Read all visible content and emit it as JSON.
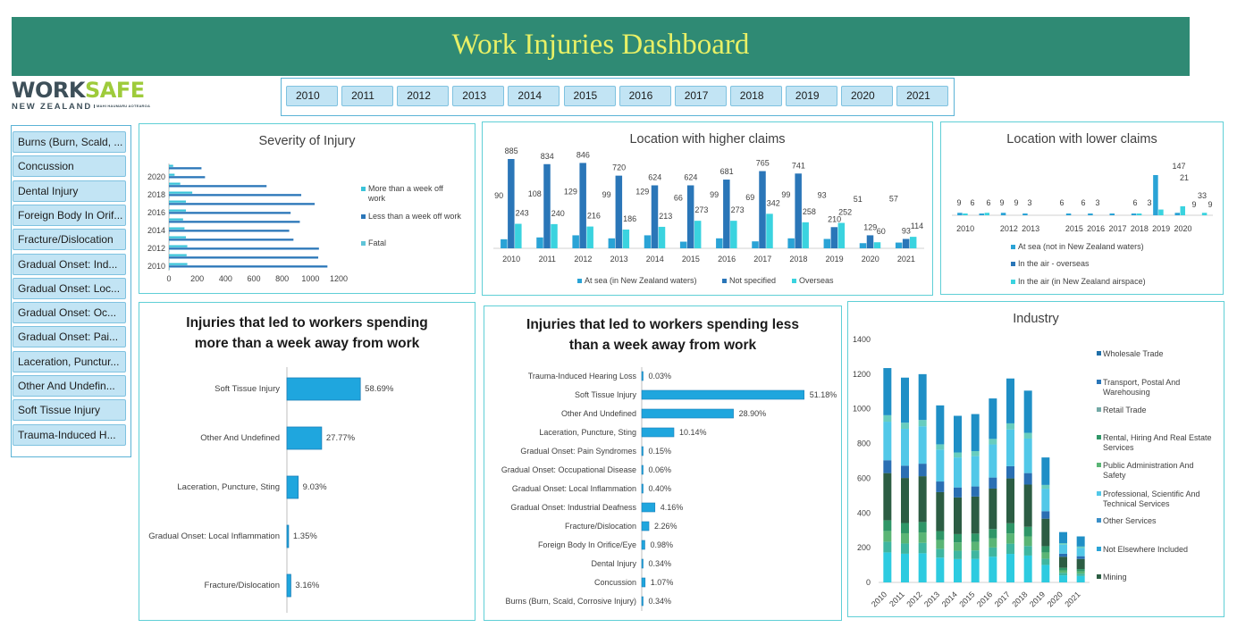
{
  "header": {
    "title": "Work Injuries Dashboard"
  },
  "logo": {
    "word1": "WORK",
    "word2": "SAFE",
    "country": "NEW ZEALAND",
    "maori": "MAHI HAUMARU AOTEAROA"
  },
  "year_slicer": [
    "2010",
    "2011",
    "2012",
    "2013",
    "2014",
    "2015",
    "2016",
    "2017",
    "2018",
    "2019",
    "2020",
    "2021"
  ],
  "injury_slicer": [
    "Burns (Burn, Scald, ...",
    "Concussion",
    "Dental Injury",
    "Foreign Body In Orif...",
    "Fracture/Dislocation",
    "Gradual Onset: Ind...",
    "Gradual Onset: Loc...",
    "Gradual Onset: Oc...",
    "Gradual Onset: Pai...",
    "Laceration, Punctur...",
    "Other And Undefin...",
    "Soft Tissue Injury",
    "Trauma-Induced H..."
  ],
  "colors": {
    "dark_blue": "#2a76b8",
    "cyan": "#3ac3d9",
    "mid_blue": "#1f9fd6",
    "teal": "#34bfc7",
    "header_green": "#2f8a74",
    "title_yellow": "#e8f066"
  },
  "chart_data": [
    {
      "id": "severity",
      "type": "bar",
      "orientation": "horizontal",
      "title": "Severity of Injury",
      "categories": [
        "2010",
        "2011",
        "2012",
        "2013",
        "2014",
        "2015",
        "2016",
        "2017",
        "2018",
        "2019",
        "2020",
        "2021"
      ],
      "y_tick_labels": [
        "2010",
        "2012",
        "2014",
        "2016",
        "2018",
        "2020"
      ],
      "xlim": [
        0,
        1200
      ],
      "x_ticks": [
        "0",
        "200",
        "400",
        "600",
        "800",
        "1000",
        "1200"
      ],
      "legend_position": "right",
      "series": [
        {
          "name": "More than a week off work",
          "color": "#3ac3d9",
          "values": [
            130,
            125,
            130,
            120,
            110,
            100,
            120,
            120,
            165,
            80,
            40,
            30
          ]
        },
        {
          "name": "Less than a week off work",
          "color": "#2a76b8",
          "values": [
            1120,
            1055,
            1060,
            880,
            850,
            925,
            860,
            1030,
            935,
            690,
            255,
            230
          ]
        },
        {
          "name": "Fatal",
          "color": "#5fc4d8",
          "values": [
            5,
            3,
            2,
            3,
            4,
            2,
            3,
            3,
            4,
            2,
            1,
            1
          ]
        }
      ]
    },
    {
      "id": "higher_claims",
      "type": "bar",
      "title": "Location with higher claims",
      "categories": [
        "2010",
        "2011",
        "2012",
        "2013",
        "2014",
        "2015",
        "2016",
        "2017",
        "2018",
        "2019",
        "2020",
        "2021"
      ],
      "legend_position": "bottom",
      "series": [
        {
          "name": "At sea (in New Zealand waters)",
          "color": "#2aa3d6",
          "values": [
            90,
            108,
            129,
            99,
            129,
            66,
            99,
            69,
            99,
            93,
            51,
            57
          ]
        },
        {
          "name": "Not specified",
          "color": "#2a76b8",
          "values": [
            885,
            834,
            846,
            720,
            624,
            624,
            681,
            765,
            741,
            210,
            129,
            93
          ]
        },
        {
          "name": "Overseas",
          "color": "#3ad3df",
          "values": [
            243,
            240,
            216,
            186,
            213,
            273,
            273,
            342,
            258,
            252,
            60,
            114
          ]
        }
      ]
    },
    {
      "id": "lower_claims",
      "type": "bar",
      "title": "Location with lower claims",
      "categories": [
        "2010",
        "2011",
        "2012",
        "2013",
        "2014",
        "2015",
        "2016",
        "2017",
        "2018",
        "2019",
        "2020",
        "2021"
      ],
      "x_tick_labels": [
        "2010",
        "2012",
        "2013",
        "2015",
        "2016",
        "2017",
        "2018",
        "2019",
        "2020"
      ],
      "legend_position": "bottom",
      "series": [
        {
          "name": "At sea (not in New Zealand waters)",
          "color": "#2aa3d6",
          "values": [
            9,
            6,
            9,
            3,
            0,
            6,
            6,
            3,
            6,
            147,
            9,
            0
          ]
        },
        {
          "name": "In the air - overseas",
          "color": "#2a76b8",
          "values": [
            0,
            0,
            0,
            0,
            0,
            0,
            0,
            0,
            0,
            0,
            0,
            0
          ]
        },
        {
          "name": "In the air (in New Zealand airspace)",
          "color": "#3ad3df",
          "values": [
            6,
            9,
            0,
            0,
            0,
            0,
            0,
            0,
            3,
            21,
            33,
            9
          ]
        }
      ],
      "data_labels": [
        "9",
        "6",
        "6",
        "9",
        "9",
        "3",
        "6",
        "6",
        "3",
        "6",
        "3",
        "147",
        "21",
        "9",
        "33",
        "9"
      ]
    },
    {
      "id": "more_week",
      "type": "bar",
      "orientation": "horizontal",
      "title": "Injuries that led to workers spending more than a week away from work",
      "categories": [
        "Soft Tissue Injury",
        "Other And Undefined",
        "Laceration, Puncture, Sting",
        "Gradual Onset: Local Inflammation",
        "Fracture/Dislocation"
      ],
      "values": [
        58.69,
        27.77,
        9.03,
        1.35,
        3.16
      ],
      "labels": [
        "58.69%",
        "27.77%",
        "9.03%",
        "1.35%",
        "3.16%"
      ]
    },
    {
      "id": "less_week",
      "type": "bar",
      "orientation": "horizontal",
      "title": "Injuries that led to workers spending less than a week away from work",
      "categories": [
        "Trauma-Induced Hearing Loss",
        "Soft Tissue Injury",
        "Other And Undefined",
        "Laceration, Puncture, Sting",
        "Gradual Onset: Pain Syndromes",
        "Gradual Onset: Occupational Disease",
        "Gradual Onset: Local Inflammation",
        "Gradual Onset: Industrial Deafness",
        "Fracture/Dislocation",
        "Foreign Body In Orifice/Eye",
        "Dental Injury",
        "Concussion",
        "Burns (Burn, Scald, Corrosive Injury)"
      ],
      "values": [
        0.03,
        51.18,
        28.9,
        10.14,
        0.15,
        0.06,
        0.4,
        4.16,
        2.26,
        0.98,
        0.34,
        1.07,
        0.34
      ],
      "labels": [
        "0.03%",
        "51.18%",
        "28.90%",
        "10.14%",
        "0.15%",
        "0.06%",
        "0.40%",
        "4.16%",
        "2.26%",
        "0.98%",
        "0.34%",
        "1.07%",
        "0.34%"
      ]
    },
    {
      "id": "industry",
      "type": "bar",
      "stacked": true,
      "title": "Industry",
      "categories": [
        "2010",
        "2011",
        "2012",
        "2013",
        "2014",
        "2015",
        "2016",
        "2017",
        "2018",
        "2019",
        "2020",
        "2021"
      ],
      "ylim": [
        0,
        1400
      ],
      "y_ticks": [
        "0",
        "200",
        "400",
        "600",
        "800",
        "1000",
        "1200",
        "1400"
      ],
      "totals": [
        1235,
        1180,
        1200,
        1020,
        960,
        970,
        1060,
        1175,
        1105,
        720,
        290,
        265
      ],
      "legend_position": "right",
      "legend": [
        "Wholesale Trade",
        "Transport, Postal And Warehousing",
        "Retail Trade",
        "Rental, Hiring And Real Estate Services",
        "Public Administration And Safety",
        "Professional, Scientific And Technical Services",
        "Other Services",
        "Not Elsewhere Included",
        "Mining"
      ],
      "stack_palette": [
        "#2dcbe0",
        "#3fb6a0",
        "#5ab575",
        "#2f9667",
        "#2c5d43",
        "#2a6fb3",
        "#52c8e8",
        "#68cdbf",
        "#1f8fc6"
      ]
    }
  ]
}
